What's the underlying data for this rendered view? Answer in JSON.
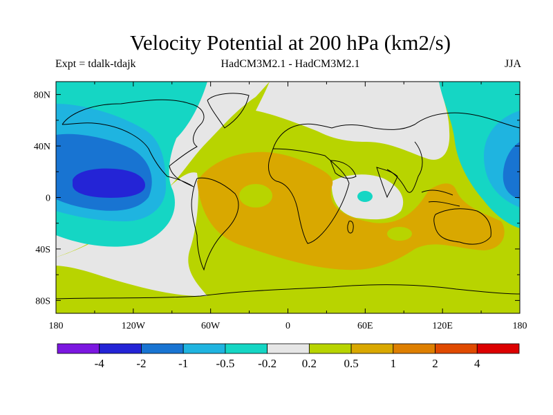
{
  "title": "Velocity Potential at 200 hPa (km2/s)",
  "subtitle_left": "Expt = tdalk-tdajk",
  "subtitle_center": "HadCM3M2.1 - HadCM3M2.1",
  "subtitle_right": "JJA",
  "lon_ticks": [
    "180",
    "120W",
    "60W",
    "0",
    "60E",
    "120E",
    "180"
  ],
  "lat_ticks": [
    "80N",
    "40N",
    "0",
    "40S",
    "80S"
  ],
  "lon_range": [
    -180,
    180
  ],
  "lat_range": [
    -90,
    90
  ],
  "colorbar": {
    "colors": [
      "#7b17e0",
      "#2424d6",
      "#1874d2",
      "#1fb4e0",
      "#15d6c4",
      "#e6e6e6",
      "#b8d400",
      "#d9a800",
      "#de7f00",
      "#e04a00",
      "#dc0000"
    ],
    "labels": [
      "-4",
      "-2",
      "-1",
      "-0.5",
      "-0.2",
      "0.2",
      "0.5",
      "1",
      "2",
      "4"
    ]
  }
}
